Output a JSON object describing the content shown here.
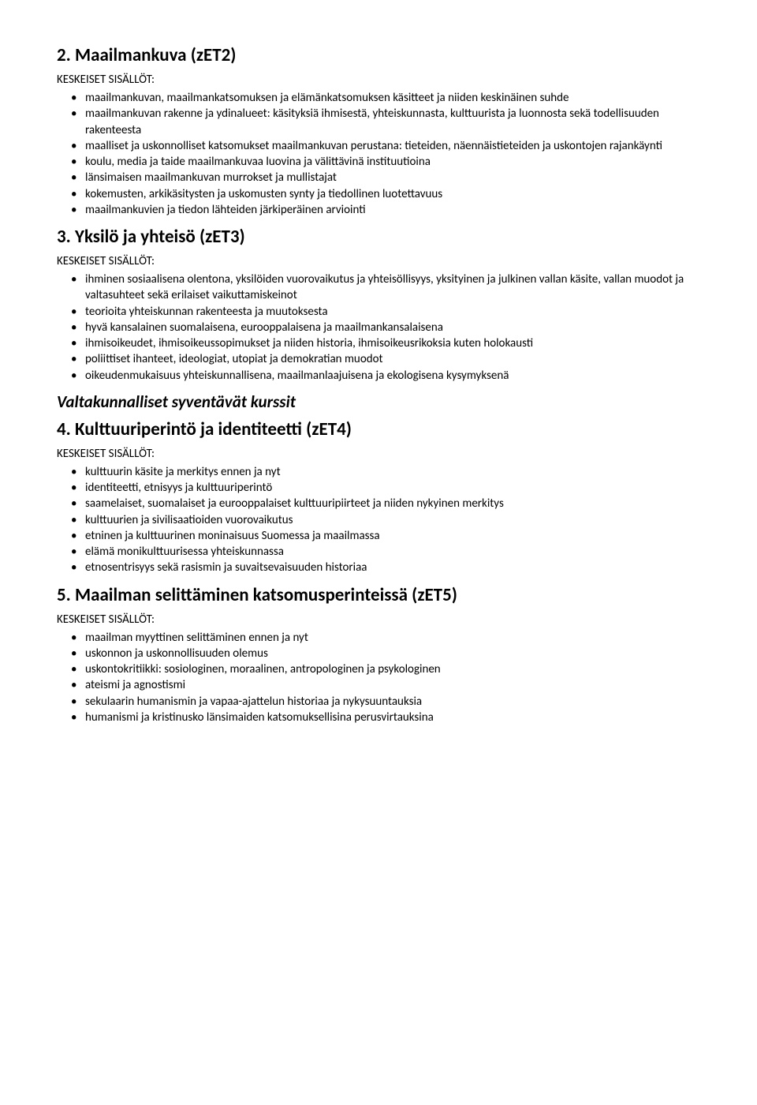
{
  "sections": [
    {
      "heading": "2. Maailmankuva (zET2)",
      "subheader": "KESKEISET SISÄLLÖT:",
      "items": [
        "maailmankuvan, maailmankatsomuksen ja elämänkatsomuksen käsitteet ja niiden keskinäinen suhde",
        "maailmankuvan rakenne ja ydinalueet: käsityksiä ihmisestä, yhteiskunnasta, kulttuurista ja luonnosta sekä todellisuuden rakenteesta",
        "maalliset ja uskonnolliset katsomukset maailmankuvan perustana: tieteiden, näennäistieteiden ja uskontojen rajankäynti",
        "koulu, media ja taide maailmankuvaa luovina ja välittävinä instituutioina",
        "länsimaisen maailmankuvan murrokset ja mullistajat",
        "kokemusten, arkikäsitysten ja uskomusten synty ja tiedollinen luotettavuus",
        "maailmankuvien ja tiedon lähteiden järkiperäinen arviointi"
      ]
    },
    {
      "heading": "3. Yksilö ja yhteisö (zET3)",
      "subheader": "KESKEISET SISÄLLÖT:",
      "items": [
        "ihminen sosiaalisena olentona, yksilöiden vuorovaikutus ja yhteisöllisyys, yksityinen ja julkinen vallan käsite, vallan muodot ja valtasuhteet sekä erilaiset vaikuttamiskeinot",
        "teorioita yhteiskunnan rakenteesta ja muutoksesta",
        "hyvä kansalainen suomalaisena, eurooppalaisena ja maailmankansalaisena",
        "ihmisoikeudet, ihmisoikeussopimukset ja niiden historia, ihmisoikeusrikoksia kuten holokausti",
        "poliittiset ihanteet, ideologiat, utopiat ja demokratian muodot",
        "oikeudenmukaisuus yhteiskunnallisena, maailmanlaajuisena ja ekologisena kysymyksenä"
      ]
    }
  ],
  "groupHeading": "Valtakunnalliset syventävät kurssit",
  "sections2": [
    {
      "heading": "4. Kulttuuriperintö ja identiteetti (zET4)",
      "subheader": "KESKEISET SISÄLLÖT:",
      "items": [
        "kulttuurin käsite ja merkitys ennen ja nyt",
        "identiteetti, etnisyys ja kulttuuriperintö",
        "saamelaiset, suomalaiset ja eurooppalaiset kulttuuripiirteet ja niiden nykyinen merkitys",
        "kulttuurien ja sivilisaatioiden vuorovaikutus",
        "etninen ja kulttuurinen moninaisuus Suomessa ja maailmassa",
        "elämä monikulttuurisessa yhteiskunnassa",
        "etnosentrisyys sekä rasismin ja suvaitsevaisuuden historiaa"
      ]
    },
    {
      "heading": "5. Maailman selittäminen katsomusperinteissä (zET5)",
      "subheader": "KESKEISET SISÄLLÖT:",
      "items": [
        "maailman myyttinen selittäminen ennen ja nyt",
        "uskonnon ja uskonnollisuuden olemus",
        "uskontokritiikki: sosiologinen, moraalinen, antropologinen ja psykologinen",
        "ateismi ja agnostismi",
        "sekulaarin humanismin ja vapaa-ajattelun historiaa ja nykysuuntauksia",
        "humanismi ja kristinusko länsimaiden katsomuksellisina perusvirtauksina"
      ]
    }
  ]
}
